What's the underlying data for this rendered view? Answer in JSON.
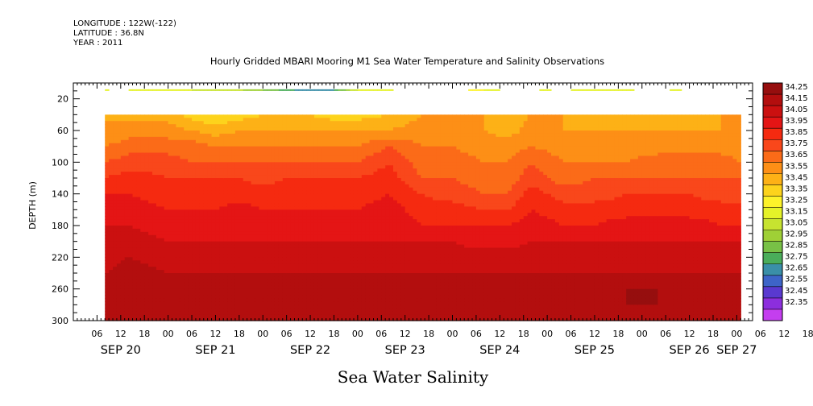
{
  "header": {
    "longitude": "LONGITUDE : 122W(-122)",
    "latitude": "LATITUDE : 36.8N",
    "year": "YEAR : 2011"
  },
  "chart_data": {
    "type": "heatmap",
    "title": "Hourly Gridded MBARI Mooring M1 Sea Water Temperature and Salinity Observations",
    "variable_label": "Sea Water Salinity",
    "ylabel": "DEPTH (m)",
    "ylim": [
      300,
      0
    ],
    "yticks": [
      20,
      60,
      100,
      140,
      180,
      220,
      260,
      300
    ],
    "x_range_hours": [
      "SEP 20 00",
      "SEP 27 04"
    ],
    "hour_ticks": [
      "06",
      "12",
      "18",
      "00",
      "06",
      "12",
      "18",
      "00",
      "06",
      "12",
      "18",
      "00",
      "06",
      "12",
      "18",
      "00",
      "06",
      "12",
      "18",
      "00",
      "06",
      "12",
      "18",
      "00",
      "06",
      "12",
      "18",
      "00",
      "06",
      "12",
      "18",
      "00"
    ],
    "day_labels": [
      {
        "label": "SEP 20",
        "hour": 12
      },
      {
        "label": "SEP 21",
        "hour": 36
      },
      {
        "label": "SEP 22",
        "hour": 60
      },
      {
        "label": "SEP 23",
        "hour": 84
      },
      {
        "label": "SEP 24",
        "hour": 108
      },
      {
        "label": "SEP 25",
        "hour": 132
      },
      {
        "label": "SEP 26",
        "hour": 156
      },
      {
        "label": "SEP 27",
        "hour": 168
      }
    ],
    "data_start_hour": 8,
    "data_end_hour": 169,
    "surface_layer_depth_m": [
      8,
      10
    ],
    "surface_segments_hours": [
      [
        8,
        9
      ],
      [
        14,
        81
      ],
      [
        100,
        108
      ],
      [
        118,
        121
      ],
      [
        126,
        142
      ],
      [
        151,
        154
      ]
    ],
    "levels": [
      "34.25",
      "34.15",
      "34.05",
      "33.95",
      "33.85",
      "33.75",
      "33.65",
      "33.55",
      "33.45",
      "33.35",
      "33.25",
      "33.15",
      "33.05",
      "32.95",
      "32.85",
      "32.75",
      "32.65",
      "32.55",
      "32.45",
      "32.35"
    ],
    "level_colors": [
      "#960e0e",
      "#b30e0e",
      "#cb1010",
      "#e41515",
      "#f52a10",
      "#f9471b",
      "#fb6b18",
      "#fd8f16",
      "#fdb116",
      "#fdd31c",
      "#fdf22a",
      "#e5f229",
      "#c7e330",
      "#9fd036",
      "#78c146",
      "#4aad5a",
      "#3a8fa8",
      "#3d64c8",
      "#5939d0",
      "#8c2edd",
      "#c43eef"
    ],
    "colorbar_labels": [
      "34.25",
      "34.15",
      "34.05",
      "33.95",
      "33.85",
      "33.75",
      "33.65",
      "33.55",
      "33.45",
      "33.35",
      "33.25",
      "33.15",
      "33.05",
      "32.95",
      "32.85",
      "32.75",
      "32.65",
      "32.55",
      "32.45",
      "32.35"
    ],
    "profile_depths_m": [
      40,
      60,
      80,
      100,
      120,
      140,
      160,
      180,
      200,
      220,
      240,
      260,
      280,
      300
    ],
    "profiles": [
      {
        "hour": 8,
        "salinity": [
          33.55,
          33.55,
          33.65,
          33.75,
          33.85,
          33.95,
          34.0,
          34.05,
          34.05,
          34.1,
          34.15,
          34.2,
          34.2,
          34.2
        ]
      },
      {
        "hour": 14,
        "salinity": [
          33.5,
          33.6,
          33.7,
          33.8,
          33.9,
          33.95,
          34.0,
          34.05,
          34.1,
          34.15,
          34.2,
          34.2,
          34.2,
          34.2
        ]
      },
      {
        "hour": 24,
        "salinity": [
          33.5,
          33.6,
          33.7,
          33.8,
          33.85,
          33.9,
          33.95,
          34.0,
          34.05,
          34.1,
          34.15,
          34.2,
          34.2,
          34.2
        ]
      },
      {
        "hour": 30,
        "salinity": [
          33.4,
          33.55,
          33.7,
          33.75,
          33.85,
          33.9,
          33.95,
          34.0,
          34.05,
          34.1,
          34.15,
          34.2,
          34.2,
          34.2
        ]
      },
      {
        "hour": 36,
        "salinity": [
          33.35,
          33.5,
          33.65,
          33.75,
          33.85,
          33.9,
          33.95,
          34.0,
          34.05,
          34.1,
          34.15,
          34.2,
          34.2,
          34.2
        ]
      },
      {
        "hour": 42,
        "salinity": [
          33.4,
          33.55,
          33.65,
          33.75,
          33.85,
          33.9,
          34.0,
          34.0,
          34.05,
          34.1,
          34.15,
          34.25,
          34.2,
          34.2
        ]
      },
      {
        "hour": 48,
        "salinity": [
          33.45,
          33.55,
          33.65,
          33.75,
          33.8,
          33.9,
          33.95,
          34.0,
          34.05,
          34.1,
          34.15,
          34.2,
          34.2,
          34.2
        ]
      },
      {
        "hour": 54,
        "salinity": [
          33.45,
          33.55,
          33.65,
          33.75,
          33.85,
          33.9,
          33.95,
          34.0,
          34.05,
          34.1,
          34.15,
          34.2,
          34.2,
          34.2
        ]
      },
      {
        "hour": 60,
        "salinity": [
          33.45,
          33.55,
          33.65,
          33.75,
          33.85,
          33.9,
          33.95,
          34.0,
          34.05,
          34.1,
          34.15,
          34.2,
          34.2,
          34.2
        ]
      },
      {
        "hour": 66,
        "salinity": [
          33.4,
          33.55,
          33.65,
          33.75,
          33.85,
          33.9,
          33.95,
          34.0,
          34.05,
          34.1,
          34.15,
          34.2,
          34.2,
          34.2
        ]
      },
      {
        "hour": 72,
        "salinity": [
          33.4,
          33.55,
          33.65,
          33.75,
          33.85,
          33.9,
          33.95,
          34.0,
          34.05,
          34.1,
          34.15,
          34.2,
          34.2,
          34.2
        ]
      },
      {
        "hour": 80,
        "salinity": [
          33.45,
          33.55,
          33.75,
          33.85,
          33.9,
          33.95,
          34.0,
          34.05,
          34.05,
          34.1,
          34.15,
          34.2,
          34.2,
          34.2
        ]
      },
      {
        "hour": 88,
        "salinity": [
          33.55,
          33.6,
          33.65,
          33.7,
          33.75,
          33.85,
          33.9,
          33.95,
          34.05,
          34.1,
          34.15,
          34.2,
          34.2,
          34.2
        ]
      },
      {
        "hour": 96,
        "salinity": [
          33.55,
          33.6,
          33.65,
          33.7,
          33.75,
          33.8,
          33.9,
          33.95,
          34.05,
          34.1,
          34.15,
          34.2,
          34.2,
          34.2
        ]
      },
      {
        "hour": 104,
        "salinity": [
          33.55,
          33.55,
          33.6,
          33.65,
          33.7,
          33.75,
          33.85,
          33.95,
          34.0,
          34.1,
          34.15,
          34.2,
          34.2,
          34.2
        ]
      },
      {
        "hour": 110,
        "salinity": [
          33.5,
          33.5,
          33.6,
          33.65,
          33.7,
          33.75,
          33.85,
          33.95,
          34.0,
          34.1,
          34.15,
          34.2,
          34.2,
          34.2
        ]
      },
      {
        "hour": 116,
        "salinity": [
          33.55,
          33.6,
          33.65,
          33.75,
          33.8,
          33.9,
          33.95,
          34.0,
          34.05,
          34.1,
          34.15,
          34.2,
          34.2,
          34.2
        ]
      },
      {
        "hour": 124,
        "salinity": [
          33.55,
          33.55,
          33.6,
          33.65,
          33.7,
          33.8,
          33.9,
          33.95,
          34.05,
          34.1,
          34.15,
          34.2,
          34.2,
          34.2
        ]
      },
      {
        "hour": 132,
        "salinity": [
          33.5,
          33.55,
          33.6,
          33.65,
          33.75,
          33.8,
          33.9,
          33.95,
          34.05,
          34.1,
          34.15,
          34.2,
          34.25,
          34.2
        ]
      },
      {
        "hour": 140,
        "salinity": [
          33.5,
          33.55,
          33.6,
          33.65,
          33.75,
          33.85,
          33.9,
          34.0,
          34.05,
          34.1,
          34.15,
          34.25,
          34.25,
          34.2
        ]
      },
      {
        "hour": 148,
        "salinity": [
          33.5,
          33.55,
          33.6,
          33.7,
          33.75,
          33.85,
          33.9,
          34.0,
          34.05,
          34.1,
          34.15,
          34.25,
          34.25,
          34.2
        ]
      },
      {
        "hour": 156,
        "salinity": [
          33.5,
          33.55,
          33.6,
          33.7,
          33.75,
          33.85,
          33.9,
          34.0,
          34.05,
          34.1,
          34.15,
          34.2,
          34.2,
          34.2
        ]
      },
      {
        "hour": 164,
        "salinity": [
          33.55,
          33.55,
          33.6,
          33.7,
          33.75,
          33.8,
          33.9,
          33.95,
          34.05,
          34.1,
          34.15,
          34.2,
          34.2,
          34.2
        ]
      },
      {
        "hour": 169,
        "salinity": [
          33.55,
          33.55,
          33.6,
          33.65,
          33.75,
          33.8,
          33.9,
          33.95,
          34.05,
          34.1,
          34.15,
          34.2,
          34.2,
          34.2
        ]
      }
    ],
    "surface_profiles": [
      {
        "hour": 8,
        "salinity": 33.25
      },
      {
        "hour": 20,
        "salinity": 33.2
      },
      {
        "hour": 40,
        "salinity": 33.1
      },
      {
        "hour": 50,
        "salinity": 32.9
      },
      {
        "hour": 58,
        "salinity": 32.7
      },
      {
        "hour": 66,
        "salinity": 32.75
      },
      {
        "hour": 72,
        "salinity": 33.15
      },
      {
        "hour": 81,
        "salinity": 33.25
      },
      {
        "hour": 104,
        "salinity": 33.25
      },
      {
        "hour": 120,
        "salinity": 33.15
      },
      {
        "hour": 134,
        "salinity": 33.2
      },
      {
        "hour": 152,
        "salinity": 33.2
      }
    ],
    "grid": false,
    "legend": "right colorbar"
  }
}
